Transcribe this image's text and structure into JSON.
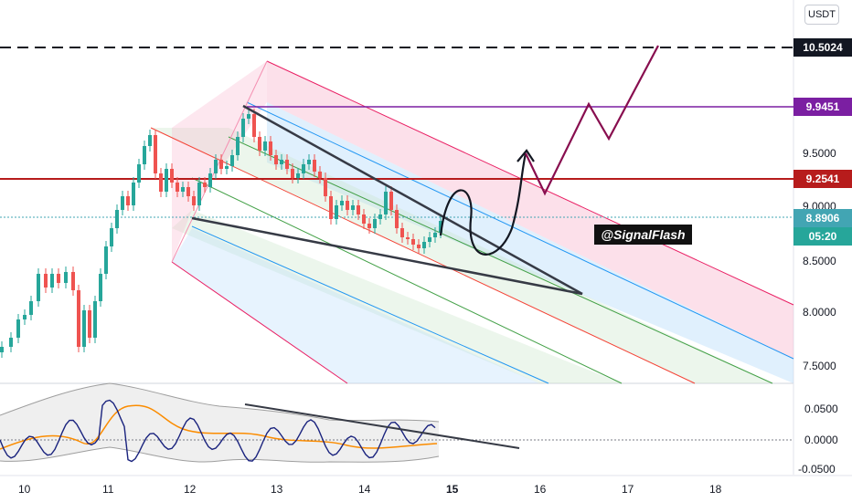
{
  "header": {
    "currency_label": "USDT"
  },
  "watermark": {
    "text": "@SignalFlash"
  },
  "price_axis": {
    "ticks": [
      "9.5000",
      "9.0000",
      "8.5000",
      "8.0000",
      "7.5000"
    ],
    "level_target": "10.5024",
    "level_purple": "9.9451",
    "level_red": "9.2541",
    "current_price": "8.8906",
    "countdown": "05:20"
  },
  "indicator_axis": {
    "ticks": [
      "0.0500",
      "0.0000",
      "-0.0500"
    ]
  },
  "time_axis": {
    "labels": [
      "10",
      "11",
      "12",
      "13",
      "14",
      "15",
      "16",
      "17",
      "18"
    ]
  },
  "colors": {
    "up": "#26a69a",
    "down": "#ef5350",
    "level_target": "#131722",
    "level_purple": "#7b1fa2",
    "level_red": "#b71c1c",
    "current_price": "#42a5b3",
    "countdown_bg": "#26a69a",
    "projection": "#880e4f"
  }
}
